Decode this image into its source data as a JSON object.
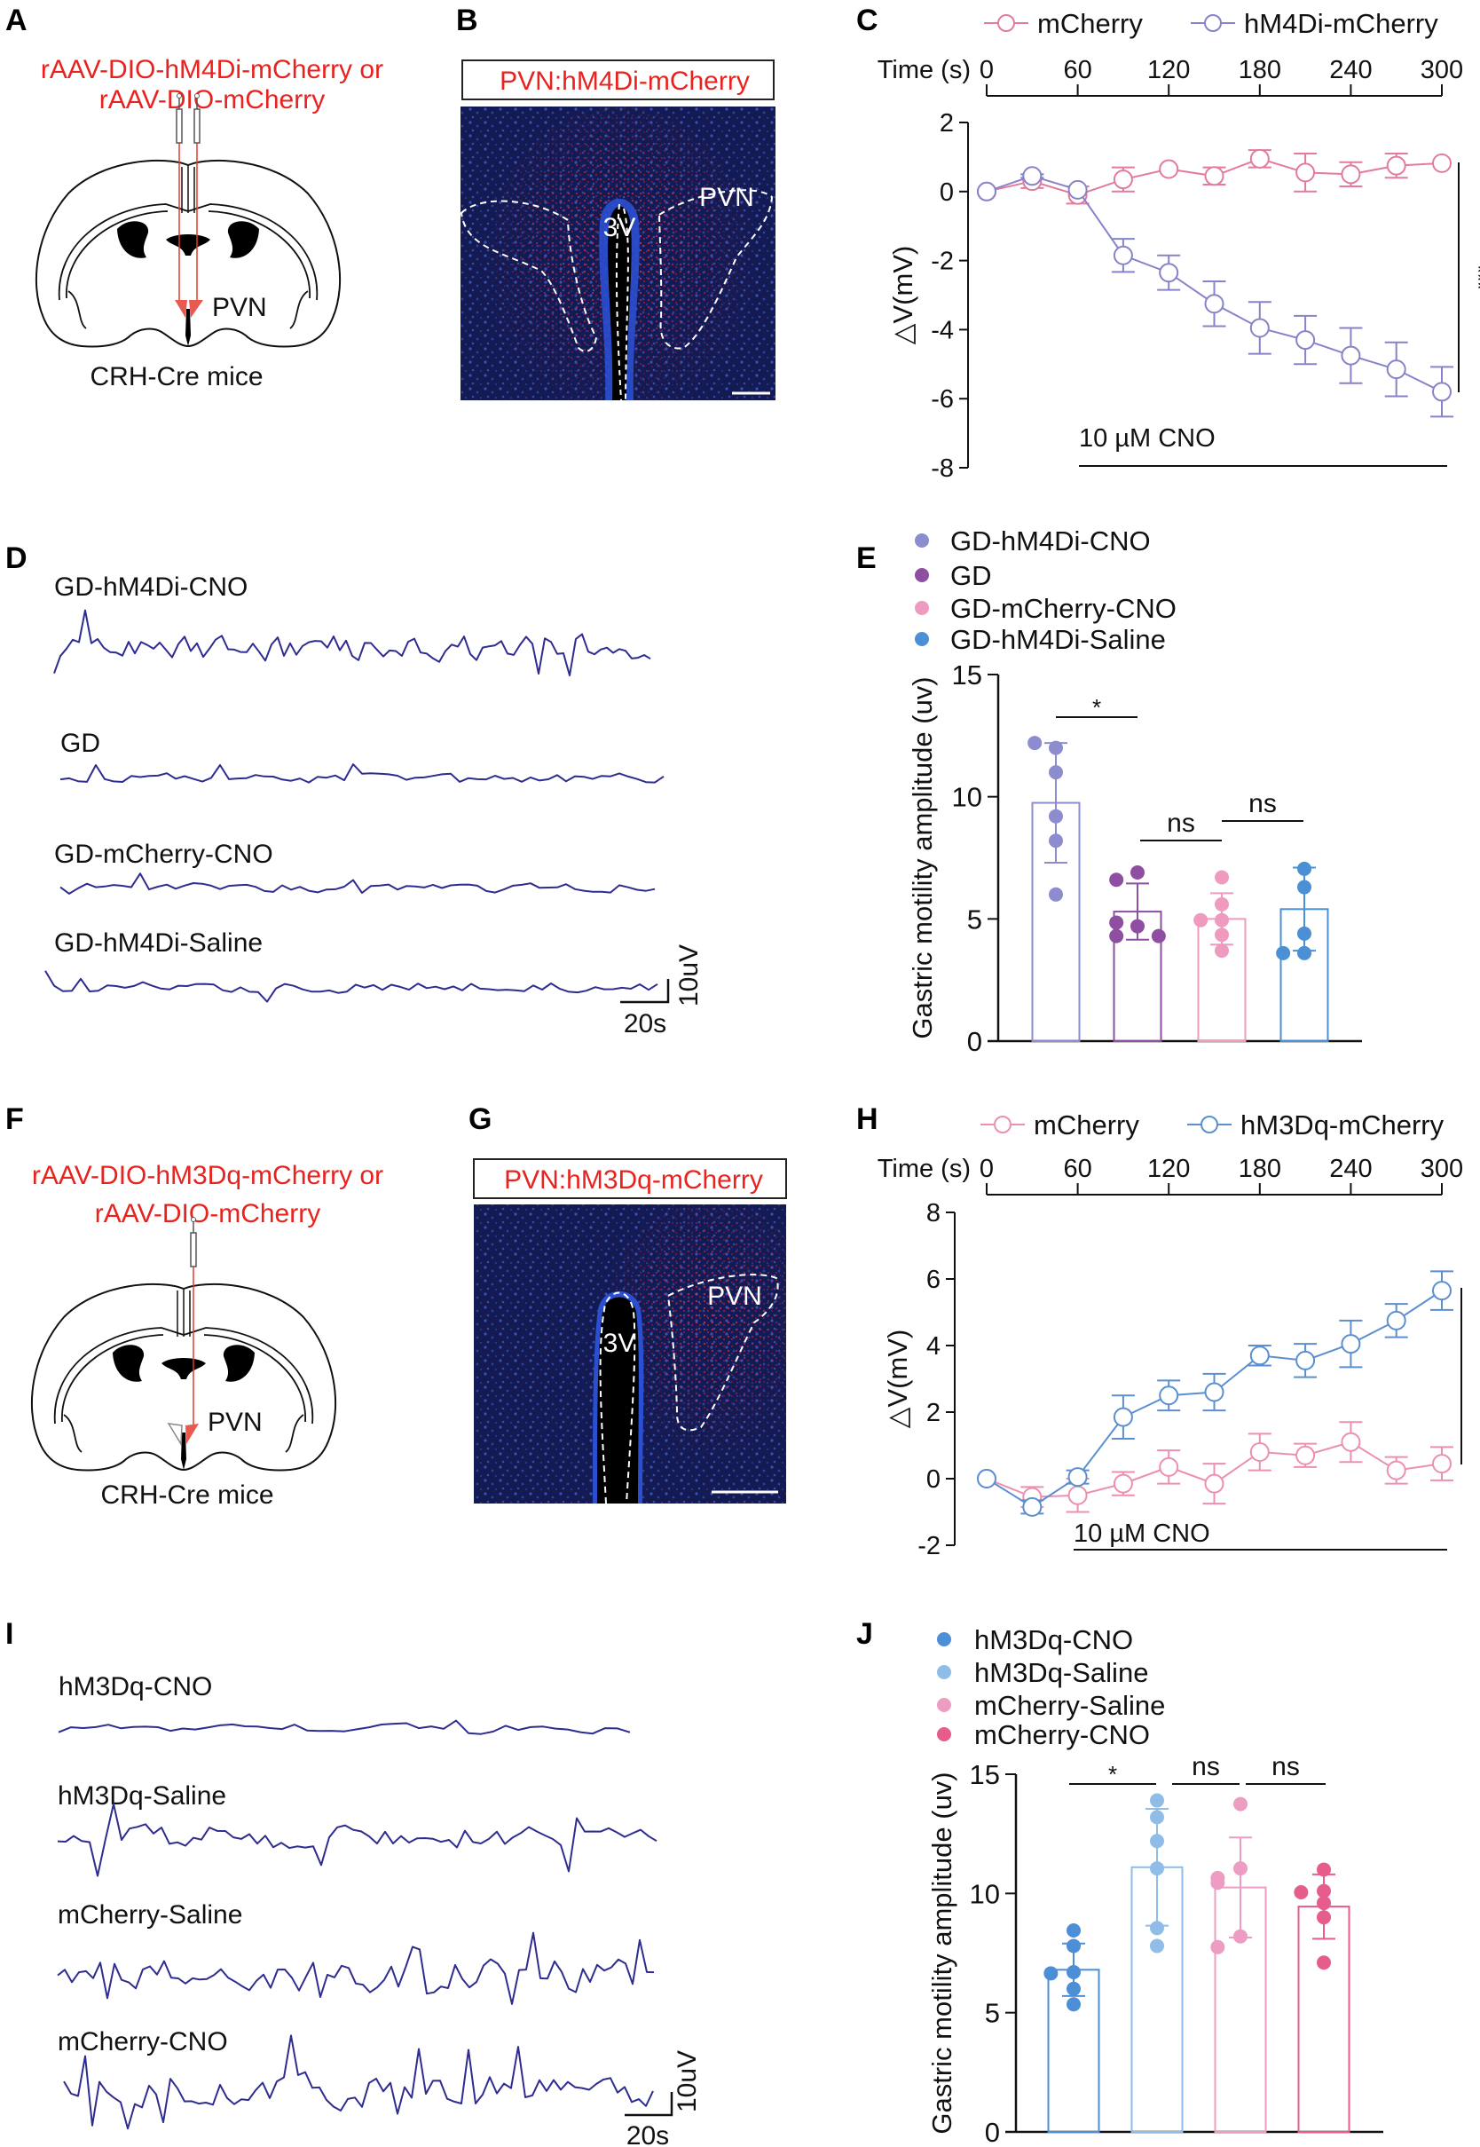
{
  "panels": {
    "A": {
      "label": "A",
      "virus_lines": [
        "rAAV-DIO-hM4Di-mCherry or",
        "rAAV-DIO-mCherry"
      ],
      "region": "PVN",
      "mouse": "CRH-Cre mice"
    },
    "B": {
      "label": "B",
      "title": "PVN:hM4Di-mCherry",
      "ventricle": "3V",
      "region": "PVN"
    },
    "D": {
      "label": "D",
      "traces": [
        "GD-hM4Di-CNO",
        "GD",
        "GD-mCherry-CNO",
        "GD-hM4Di-Saline"
      ],
      "scale_v": "10uV",
      "scale_h": "20s"
    },
    "F": {
      "label": "F",
      "virus_lines": [
        "rAAV-DIO-hM3Dq-mCherry or",
        "rAAV-DIO-mCherry"
      ],
      "region": "PVN",
      "mouse": "CRH-Cre mice"
    },
    "G": {
      "label": "G",
      "title": "PVN:hM3Dq-mCherry",
      "ventricle": "3V",
      "region": "PVN"
    },
    "I": {
      "label": "I",
      "traces": [
        "hM3Dq-CNO",
        "hM3Dq-Saline",
        "mCherry-Saline",
        "mCherry-CNO"
      ],
      "scale_v": "10uV",
      "scale_h": "20s"
    }
  },
  "trace_color": "#2e2c8f",
  "chart_data": [
    {
      "panel": "C",
      "type": "line",
      "xlabel": "Time (s)",
      "x_ticks": [
        0,
        60,
        120,
        180,
        240,
        300
      ],
      "xlim": [
        0,
        300
      ],
      "ylabel": "△V(mV)",
      "ylim": [
        -8,
        2
      ],
      "y_ticks": [
        2,
        0,
        -2,
        -4,
        -6,
        -8
      ],
      "x": [
        0,
        30,
        60,
        90,
        120,
        150,
        180,
        210,
        240,
        270,
        300
      ],
      "series": [
        {
          "name": "mCherry",
          "color": "#e27b9c",
          "values": [
            0,
            0.3,
            -0.1,
            0.35,
            0.65,
            0.45,
            0.95,
            0.55,
            0.5,
            0.75,
            0.82
          ],
          "errors": [
            0,
            0.2,
            0.25,
            0.35,
            0,
            0.25,
            0.25,
            0.55,
            0.35,
            0.35,
            0
          ]
        },
        {
          "name": "hM4Di-mCherry",
          "color": "#8683c9",
          "values": [
            0,
            0.45,
            0.05,
            -1.85,
            -2.35,
            -3.25,
            -3.95,
            -4.3,
            -4.75,
            -5.15,
            -5.8
          ],
          "errors": [
            0,
            0.05,
            0,
            0.48,
            0.5,
            0.65,
            0.75,
            0.7,
            0.8,
            0.78,
            0.72
          ]
        }
      ],
      "treatment": "10 µM CNO",
      "treatment_range": [
        60,
        300
      ],
      "significance": "***",
      "legend": "top"
    },
    {
      "panel": "E",
      "type": "bar",
      "ylabel": "Gastric motility amplitude (uv)",
      "ylim": [
        0,
        15
      ],
      "y_ticks": [
        0,
        5,
        10,
        15
      ],
      "categories": [
        "GD-hM4Di-CNO",
        "GD",
        "GD-mCherry-CNO",
        "GD-hM4Di-Saline"
      ],
      "colors": [
        "#8c8ccf",
        "#8e4fa2",
        "#ef9bbf",
        "#4b8fd5"
      ],
      "means": [
        9.75,
        5.3,
        5.0,
        5.4
      ],
      "errors": [
        2.45,
        1.15,
        1.05,
        1.7
      ],
      "points": [
        [
          12.0,
          12.2,
          11.0,
          9.2,
          8.2,
          6.0
        ],
        [
          6.9,
          6.6,
          4.7,
          4.85,
          4.3,
          4.3
        ],
        [
          6.7,
          5.6,
          4.95,
          4.95,
          4.35,
          3.7
        ],
        [
          7.05,
          6.3,
          4.4,
          3.6,
          3.6
        ]
      ],
      "comparisons": [
        {
          "a": 0,
          "b": 1,
          "label": "*"
        },
        {
          "a": 1,
          "b": 2,
          "label": "ns"
        },
        {
          "a": 2,
          "b": 3,
          "label": "ns"
        }
      ],
      "legend": "top-left"
    },
    {
      "panel": "H",
      "type": "line",
      "xlabel": "Time (s)",
      "x_ticks": [
        0,
        60,
        120,
        180,
        240,
        300
      ],
      "xlim": [
        0,
        300
      ],
      "ylabel": "△V(mV)",
      "ylim": [
        -2,
        8
      ],
      "y_ticks": [
        8,
        6,
        4,
        2,
        0,
        -2
      ],
      "x": [
        0,
        30,
        60,
        90,
        120,
        150,
        180,
        210,
        240,
        270,
        300
      ],
      "series": [
        {
          "name": "mCherry",
          "color": "#ec8fb3",
          "values": [
            0,
            -0.55,
            -0.5,
            -0.15,
            0.35,
            -0.15,
            0.8,
            0.7,
            1.1,
            0.25,
            0.45
          ],
          "errors": [
            0,
            0.3,
            0.5,
            0.35,
            0.5,
            0.6,
            0.55,
            0.35,
            0.6,
            0.4,
            0.5
          ]
        },
        {
          "name": "hM3Dq-mCherry",
          "color": "#5b8fd0",
          "values": [
            0,
            -0.85,
            0.05,
            1.85,
            2.5,
            2.6,
            3.7,
            3.55,
            4.05,
            4.75,
            5.65
          ],
          "errors": [
            0,
            0.2,
            0.2,
            0.65,
            0.45,
            0.55,
            0.3,
            0.5,
            0.7,
            0.5,
            0.58
          ]
        }
      ],
      "treatment": "10 µM CNO",
      "treatment_range": [
        60,
        300
      ],
      "significance": "***",
      "legend": "top"
    },
    {
      "panel": "J",
      "type": "bar",
      "ylabel": "Gastric motility amplitude (uv)",
      "ylim": [
        0,
        15
      ],
      "y_ticks": [
        0,
        5,
        10,
        15
      ],
      "categories": [
        "hM3Dq-CNO",
        "hM3Dq-Saline",
        "mCherry-Saline",
        "mCherry-CNO"
      ],
      "colors": [
        "#4d8fd6",
        "#8fbde8",
        "#ee9dc2",
        "#e65c8c"
      ],
      "means": [
        6.8,
        11.1,
        10.25,
        9.45
      ],
      "errors": [
        1.1,
        2.45,
        2.1,
        1.35
      ],
      "points": [
        [
          8.45,
          7.8,
          6.7,
          6.65,
          6.0,
          5.35
        ],
        [
          13.9,
          13.2,
          12.2,
          11.05,
          8.55,
          7.8
        ],
        [
          13.75,
          11.05,
          10.65,
          10.45,
          8.2,
          7.75
        ],
        [
          11.0,
          10.1,
          10.05,
          9.6,
          9.0,
          7.1
        ]
      ],
      "comparisons": [
        {
          "a": 0,
          "b": 1,
          "label": "*"
        },
        {
          "a": 1,
          "b": 2,
          "label": "ns"
        },
        {
          "a": 2,
          "b": 3,
          "label": "ns"
        }
      ],
      "legend": "top-left"
    }
  ]
}
